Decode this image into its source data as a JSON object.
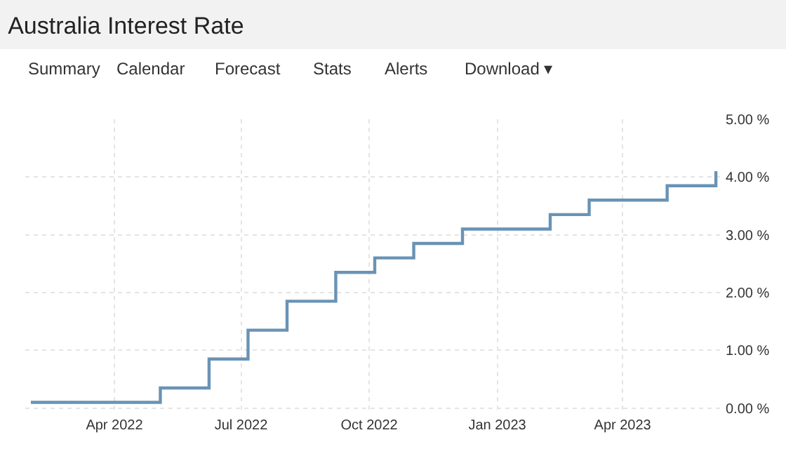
{
  "chart_data": {
    "type": "step",
    "title": "Australia Interest Rate",
    "annotations": [
      "Summary",
      "Calendar",
      "Forecast",
      "Stats",
      "Alerts",
      "Download ▾"
    ],
    "x": [
      "2022-01-31",
      "2022-05-04",
      "2022-06-08",
      "2022-07-06",
      "2022-08-03",
      "2022-09-07",
      "2022-10-05",
      "2022-11-02",
      "2022-12-07",
      "2023-02-08",
      "2023-03-08",
      "2023-05-03",
      "2023-06-07"
    ],
    "series": [
      {
        "color": "#6a93b5",
        "values": [
          0.1,
          0.35,
          0.85,
          1.35,
          1.85,
          2.35,
          2.6,
          2.85,
          3.1,
          3.35,
          3.6,
          3.85,
          4.1
        ]
      }
    ],
    "xlim": [
      "2022-01-27",
      "2023-06-13"
    ],
    "xticks": [
      {
        "value": "2022-04-01",
        "label": "Apr 2022"
      },
      {
        "value": "2022-07-01",
        "label": "Jul 2022"
      },
      {
        "value": "2022-10-01",
        "label": "Oct 2022"
      },
      {
        "value": "2023-01-01",
        "label": "Jan 2023"
      },
      {
        "value": "2023-04-01",
        "label": "Apr 2023"
      }
    ],
    "ylim": [
      -0.1,
      5.0
    ],
    "yticks": [
      {
        "value": 0,
        "label": "0.00 %"
      },
      {
        "value": 1,
        "label": "1.00 %"
      },
      {
        "value": 2,
        "label": "2.00 %"
      },
      {
        "value": 3,
        "label": "3.00 %"
      },
      {
        "value": 4,
        "label": "4.00 %"
      },
      {
        "value": 5,
        "label": "5.00 %"
      }
    ],
    "grid": true,
    "marker": "none",
    "line_style": "solid"
  }
}
